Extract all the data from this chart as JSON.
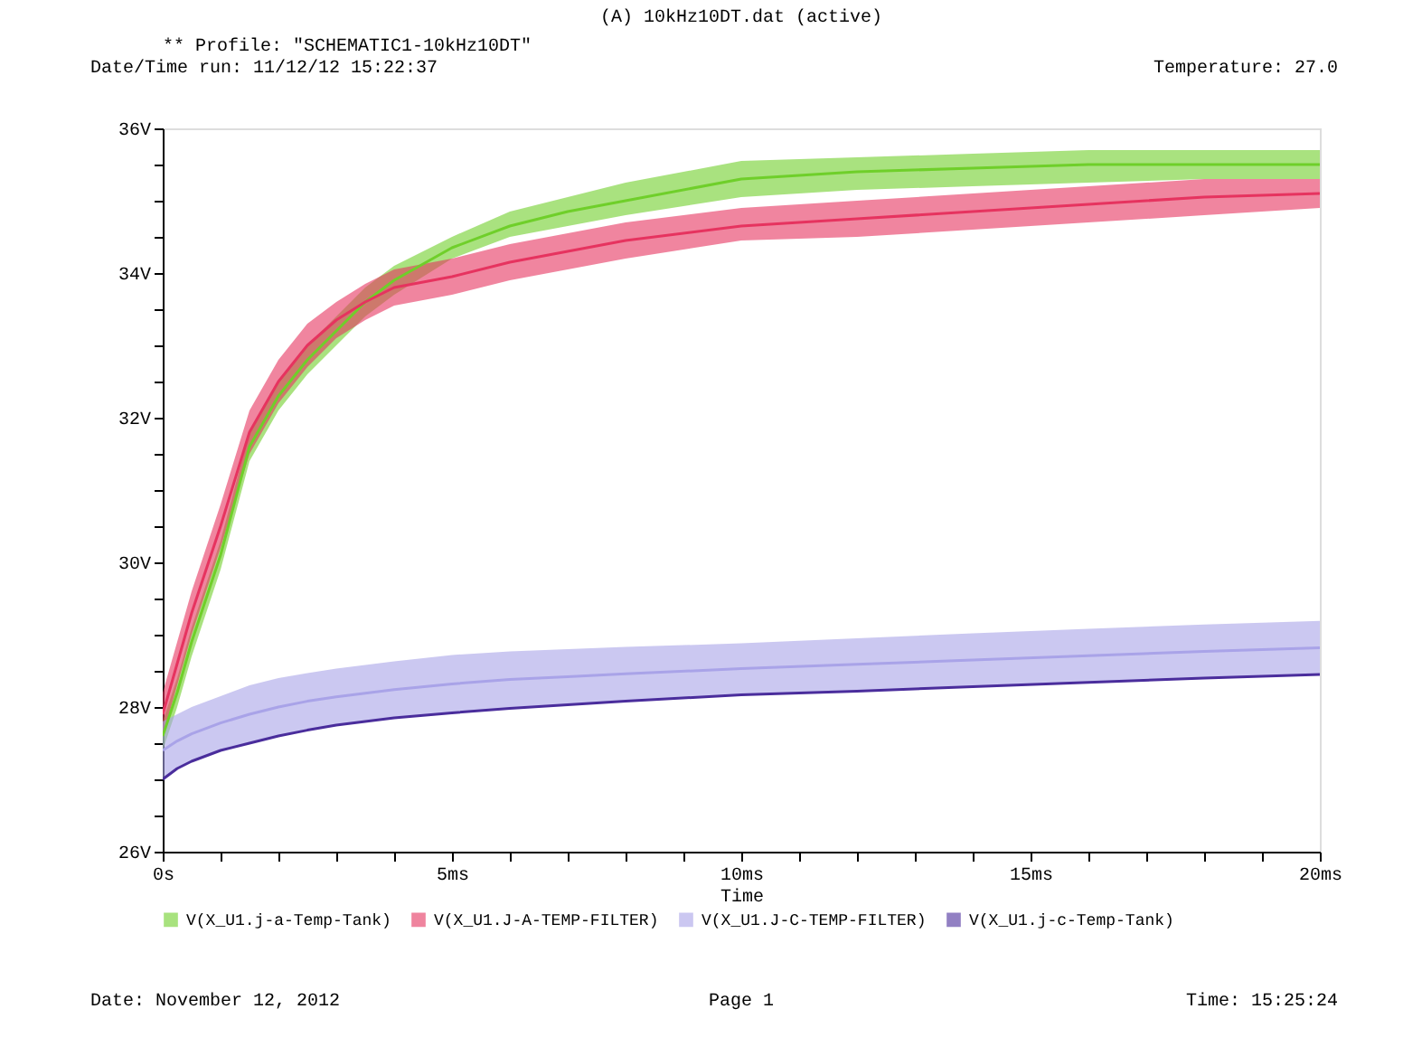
{
  "chart_data": {
    "type": "line",
    "title": "(A) 10kHz10DT.dat (active)",
    "xlabel": "Time",
    "annotations": [
      "** Profile: \"SCHEMATIC1-10kHz10DT\"",
      "Date/Time run: 11/12/12 15:22:37",
      "Temperature: 27.0",
      "Date: November 12, 2012",
      "Page 1",
      "Time: 15:25:24"
    ],
    "x": [
      0,
      0.25,
      0.5,
      1,
      1.5,
      2,
      2.5,
      3,
      3.5,
      4,
      5,
      6,
      7,
      8,
      10,
      12,
      14,
      16,
      18,
      20
    ],
    "xlim": [
      0,
      20
    ],
    "xticks": [
      {
        "value": 0,
        "label": "0s"
      },
      {
        "value": 1,
        "label": null
      },
      {
        "value": 2,
        "label": null
      },
      {
        "value": 3,
        "label": null
      },
      {
        "value": 4,
        "label": null
      },
      {
        "value": 5,
        "label": "5ms"
      },
      {
        "value": 6,
        "label": null
      },
      {
        "value": 7,
        "label": null
      },
      {
        "value": 8,
        "label": null
      },
      {
        "value": 9,
        "label": null
      },
      {
        "value": 10,
        "label": "10ms"
      },
      {
        "value": 11,
        "label": null
      },
      {
        "value": 12,
        "label": null
      },
      {
        "value": 13,
        "label": null
      },
      {
        "value": 14,
        "label": null
      },
      {
        "value": 15,
        "label": "15ms"
      },
      {
        "value": 16,
        "label": null
      },
      {
        "value": 17,
        "label": null
      },
      {
        "value": 18,
        "label": null
      },
      {
        "value": 19,
        "label": null
      },
      {
        "value": 20,
        "label": "20ms"
      }
    ],
    "ylim": [
      26,
      36
    ],
    "yticks": [
      {
        "value": 26,
        "label": "26V"
      },
      {
        "value": 26.5,
        "label": null
      },
      {
        "value": 27,
        "label": null
      },
      {
        "value": 27.5,
        "label": null
      },
      {
        "value": 28,
        "label": "28V"
      },
      {
        "value": 28.5,
        "label": null
      },
      {
        "value": 29,
        "label": null
      },
      {
        "value": 29.5,
        "label": null
      },
      {
        "value": 30,
        "label": "30V"
      },
      {
        "value": 30.5,
        "label": null
      },
      {
        "value": 31,
        "label": null
      },
      {
        "value": 31.5,
        "label": null
      },
      {
        "value": 32,
        "label": "32V"
      },
      {
        "value": 32.5,
        "label": null
      },
      {
        "value": 33,
        "label": null
      },
      {
        "value": 33.5,
        "label": null
      },
      {
        "value": 34,
        "label": "34V"
      },
      {
        "value": 34.5,
        "label": null
      },
      {
        "value": 35,
        "label": null
      },
      {
        "value": 35.5,
        "label": null
      },
      {
        "value": 36,
        "label": "36V"
      }
    ],
    "grid": false,
    "legend": "bottom",
    "line_style": "solid",
    "series": [
      {
        "name": "V(X_U1.j-a-Temp-Tank)",
        "color": "#6fcf2a",
        "values": [
          27.6,
          28.2,
          28.9,
          30.1,
          31.6,
          32.3,
          32.8,
          33.2,
          33.6,
          33.9,
          34.35,
          34.65,
          34.85,
          35.0,
          35.3,
          35.4,
          35.45,
          35.5,
          35.5,
          35.5
        ],
        "lower": [
          27.4,
          28.0,
          28.7,
          29.9,
          31.4,
          32.1,
          32.6,
          33.0,
          33.4,
          33.7,
          34.2,
          34.5,
          34.65,
          34.8,
          35.05,
          35.15,
          35.2,
          35.25,
          35.3,
          35.3
        ],
        "upper": [
          27.8,
          28.4,
          29.1,
          30.3,
          31.8,
          32.5,
          33.0,
          33.4,
          33.8,
          34.1,
          34.5,
          34.85,
          35.05,
          35.25,
          35.55,
          35.6,
          35.65,
          35.7,
          35.7,
          35.7
        ]
      },
      {
        "name": "V(X_U1.J-A-TEMP-FILTER)",
        "color": "#e6335f",
        "values": [
          27.9,
          28.6,
          29.3,
          30.5,
          31.8,
          32.5,
          33.0,
          33.35,
          33.6,
          33.8,
          33.95,
          34.15,
          34.3,
          34.45,
          34.65,
          34.75,
          34.85,
          34.95,
          35.05,
          35.1
        ],
        "lower": [
          27.6,
          28.3,
          29.0,
          30.2,
          31.5,
          32.2,
          32.7,
          33.1,
          33.35,
          33.55,
          33.7,
          33.9,
          34.05,
          34.2,
          34.45,
          34.5,
          34.6,
          34.7,
          34.8,
          34.9
        ],
        "upper": [
          28.2,
          28.9,
          29.6,
          30.8,
          32.1,
          32.8,
          33.3,
          33.6,
          33.85,
          34.05,
          34.2,
          34.4,
          34.55,
          34.7,
          34.9,
          35.0,
          35.1,
          35.2,
          35.3,
          35.3
        ]
      },
      {
        "name": "V(X_U1.J-C-TEMP-FILTER)",
        "color": "#a9a3e8",
        "values": [
          27.4,
          27.53,
          27.63,
          27.78,
          27.9,
          28.0,
          28.08,
          28.14,
          28.19,
          28.24,
          28.32,
          28.38,
          28.42,
          28.46,
          28.53,
          28.59,
          28.65,
          28.71,
          28.77,
          28.82
        ],
        "lower": [
          27.0,
          27.15,
          27.25,
          27.4,
          27.5,
          27.6,
          27.68,
          27.75,
          27.8,
          27.85,
          27.92,
          27.98,
          28.03,
          28.08,
          28.17,
          28.22,
          28.28,
          28.34,
          28.4,
          28.45
        ],
        "upper": [
          27.8,
          27.9,
          28.0,
          28.15,
          28.3,
          28.4,
          28.47,
          28.53,
          28.58,
          28.63,
          28.72,
          28.77,
          28.8,
          28.83,
          28.88,
          28.95,
          29.02,
          29.08,
          29.14,
          29.19
        ]
      },
      {
        "name": "V(X_U1.j-c-Temp-Tank)",
        "color": "#4a2d9c",
        "values": [
          27.0,
          27.15,
          27.25,
          27.4,
          27.5,
          27.6,
          27.68,
          27.75,
          27.8,
          27.85,
          27.92,
          27.98,
          28.03,
          28.08,
          28.17,
          28.22,
          28.28,
          28.34,
          28.4,
          28.45
        ]
      }
    ]
  }
}
